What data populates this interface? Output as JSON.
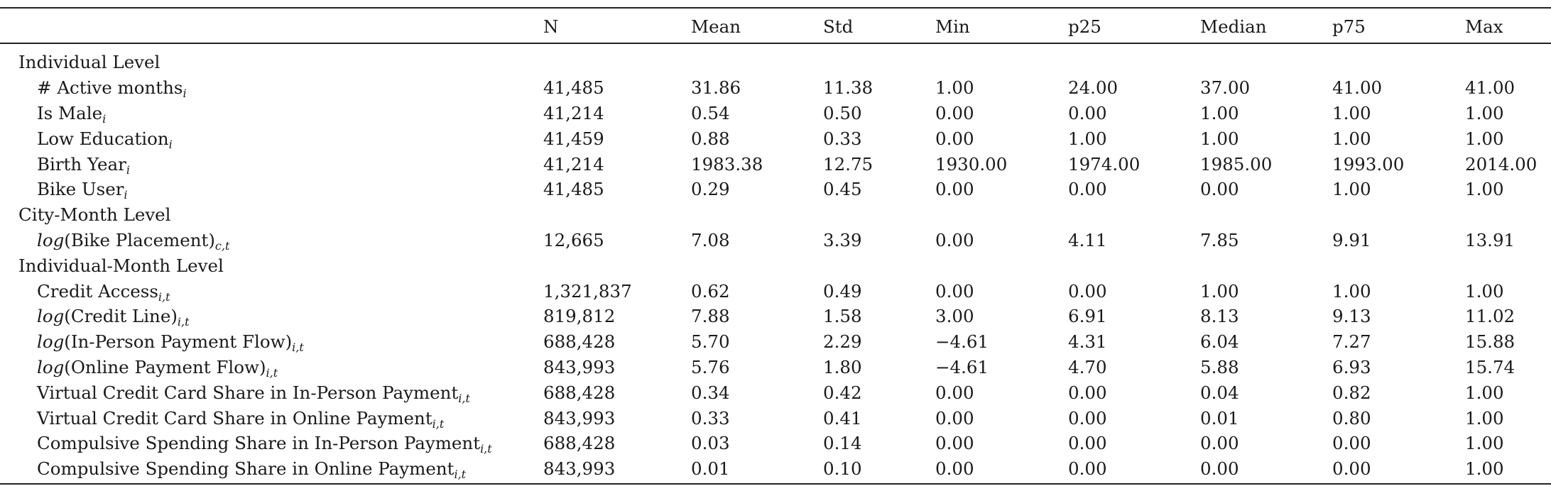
{
  "columns": [
    "",
    "N",
    "Mean",
    "Std",
    "Min",
    "p25",
    "Median",
    "p75",
    "Max"
  ],
  "sections": [
    {
      "title": "Individual Level",
      "rows": [
        {
          "fn": "",
          "label": "# Active months",
          "after": "",
          "sub": "i",
          "values": [
            "41,485",
            "31.86",
            "11.38",
            "1.00",
            "24.00",
            "37.00",
            "41.00",
            "41.00"
          ]
        },
        {
          "fn": "",
          "label": "Is Male",
          "after": "",
          "sub": "i",
          "values": [
            "41,214",
            "0.54",
            "0.50",
            "0.00",
            "0.00",
            "1.00",
            "1.00",
            "1.00"
          ]
        },
        {
          "fn": "",
          "label": "Low Education",
          "after": "",
          "sub": "i",
          "values": [
            "41,459",
            "0.88",
            "0.33",
            "0.00",
            "1.00",
            "1.00",
            "1.00",
            "1.00"
          ]
        },
        {
          "fn": "",
          "label": "Birth Year",
          "after": "",
          "sub": "i",
          "values": [
            "41,214",
            "1983.38",
            "12.75",
            "1930.00",
            "1974.00",
            "1985.00",
            "1993.00",
            "2014.00"
          ]
        },
        {
          "fn": "",
          "label": "Bike User",
          "after": "",
          "sub": "i",
          "values": [
            "41,485",
            "0.29",
            "0.45",
            "0.00",
            "0.00",
            "0.00",
            "1.00",
            "1.00"
          ]
        }
      ]
    },
    {
      "title": "City-Month Level",
      "rows": [
        {
          "fn": "log",
          "label": "(Bike Placement",
          "after": ")",
          "sub": "c,t",
          "values": [
            "12,665",
            "7.08",
            "3.39",
            "0.00",
            "4.11",
            "7.85",
            "9.91",
            "13.91"
          ]
        }
      ]
    },
    {
      "title": "Individual-Month Level",
      "rows": [
        {
          "fn": "",
          "label": "Credit Access",
          "after": "",
          "sub": "i,t",
          "values": [
            "1,321,837",
            "0.62",
            "0.49",
            "0.00",
            "0.00",
            "1.00",
            "1.00",
            "1.00"
          ]
        },
        {
          "fn": "log",
          "label": "(Credit Line",
          "after": ")",
          "sub": "i,t",
          "values": [
            "819,812",
            "7.88",
            "1.58",
            "3.00",
            "6.91",
            "8.13",
            "9.13",
            "11.02"
          ]
        },
        {
          "fn": "log",
          "label": "(In-Person Payment Flow",
          "after": ")",
          "sub": "i,t",
          "values": [
            "688,428",
            "5.70",
            "2.29",
            "−4.61",
            "4.31",
            "6.04",
            "7.27",
            "15.88"
          ]
        },
        {
          "fn": "log",
          "label": "(Online Payment Flow",
          "after": ")",
          "sub": "i,t",
          "values": [
            "843,993",
            "5.76",
            "1.80",
            "−4.61",
            "4.70",
            "5.88",
            "6.93",
            "15.74"
          ]
        },
        {
          "fn": "",
          "label": "Virtual Credit Card Share in In-Person Payment",
          "after": "",
          "sub": "i,t",
          "values": [
            "688,428",
            "0.34",
            "0.42",
            "0.00",
            "0.00",
            "0.04",
            "0.82",
            "1.00"
          ]
        },
        {
          "fn": "",
          "label": "Virtual Credit Card Share in Online Payment",
          "after": "",
          "sub": "i,t",
          "values": [
            "843,993",
            "0.33",
            "0.41",
            "0.00",
            "0.00",
            "0.01",
            "0.80",
            "1.00"
          ]
        },
        {
          "fn": "",
          "label": "Compulsive Spending Share in In-Person Payment",
          "after": "",
          "sub": "i,t",
          "values": [
            "688,428",
            "0.03",
            "0.14",
            "0.00",
            "0.00",
            "0.00",
            "0.00",
            "1.00"
          ]
        },
        {
          "fn": "",
          "label": "Compulsive Spending Share in Online Payment",
          "after": "",
          "sub": "i,t",
          "values": [
            "843,993",
            "0.01",
            "0.10",
            "0.00",
            "0.00",
            "0.00",
            "0.00",
            "1.00"
          ]
        }
      ]
    }
  ]
}
